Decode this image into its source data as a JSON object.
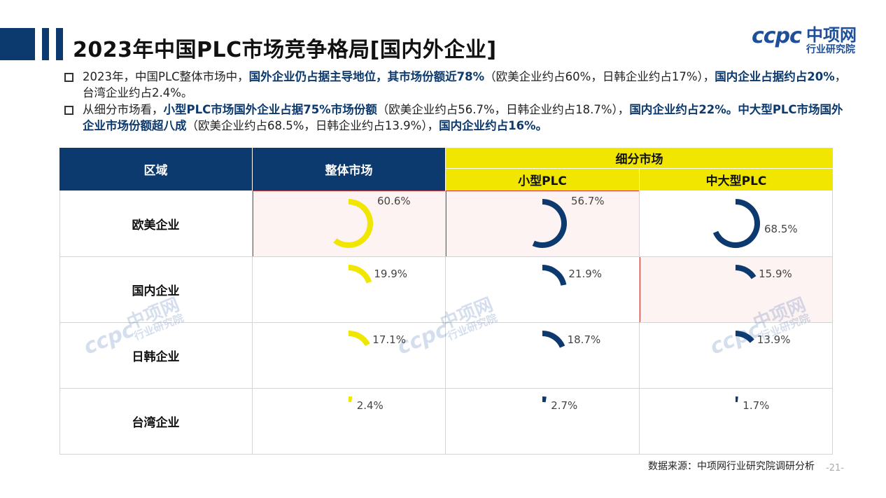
{
  "header": {
    "title": "2023年中国PLC市场竞争格局[国内外企业]"
  },
  "logo": {
    "mark": "ccpc",
    "name": "中项网",
    "sub": "行业研究院"
  },
  "bullets": [
    {
      "t1": "2023年，中国PLC整体市场中，",
      "h1": "国外企业仍占据主导地位，其市场份额近78%",
      "t2": "（欧美企业约占60%，日韩企业约占17%），",
      "h2": "国内企业占据约占20%",
      "t3": "，台湾企业约占2.4%。",
      "h3": "",
      "t4": "",
      "h4": "",
      "t5": ""
    },
    {
      "t1": "从细分市场看，",
      "h1": "小型PLC市场国外企业占据75%市场份额",
      "t2": "（欧美企业约占56.7%，日韩企业约占18.7%），",
      "h2": "国内企业约占22%。",
      "t3": "",
      "h3": "中大型PLC市场国外企业市场份额超八成",
      "t4": "（欧美企业约占68.5%，日韩企业约占13.9%），",
      "h4": "国内企业约占16%。",
      "t5": ""
    }
  ],
  "table": {
    "col_region": "区域",
    "col_overall": "整体市场",
    "col_segment": "细分市场",
    "col_small": "小型PLC",
    "col_large": "中大型PLC",
    "rows": [
      "欧美企业",
      "国内企业",
      "日韩企业",
      "台湾企业"
    ]
  },
  "chart_data": {
    "type": "pie",
    "title": "",
    "categories": [
      "欧美企业",
      "国内企业",
      "日韩企业",
      "台湾企业"
    ],
    "series": [
      {
        "name": "整体市场",
        "values": [
          60.6,
          19.9,
          17.1,
          2.4
        ]
      },
      {
        "name": "小型PLC",
        "values": [
          56.7,
          21.9,
          18.7,
          2.7
        ]
      },
      {
        "name": "中大型PLC",
        "values": [
          68.5,
          15.9,
          13.9,
          1.7
        ]
      }
    ],
    "value_labels": [
      [
        "60.6%",
        "19.9%",
        "17.1%",
        "2.4%"
      ],
      [
        "56.7%",
        "21.9%",
        "18.7%",
        "2.7%"
      ],
      [
        "68.5%",
        "15.9%",
        "13.9%",
        "1.7%"
      ]
    ],
    "unit": "%",
    "colors": {
      "整体市场": "#f0e600",
      "小型PLC": "#0d3a6e",
      "中大型PLC": "#0d3a6e"
    },
    "highlighted": [
      [
        0,
        0
      ],
      [
        0,
        1
      ],
      [
        1,
        2
      ]
    ]
  },
  "watermark": {
    "mark": "ccpc",
    "name": "中项网",
    "sub": "行业研究院"
  },
  "footer": {
    "source": "数据来源：中项网行业研究院调研分析",
    "page": "-21-"
  }
}
